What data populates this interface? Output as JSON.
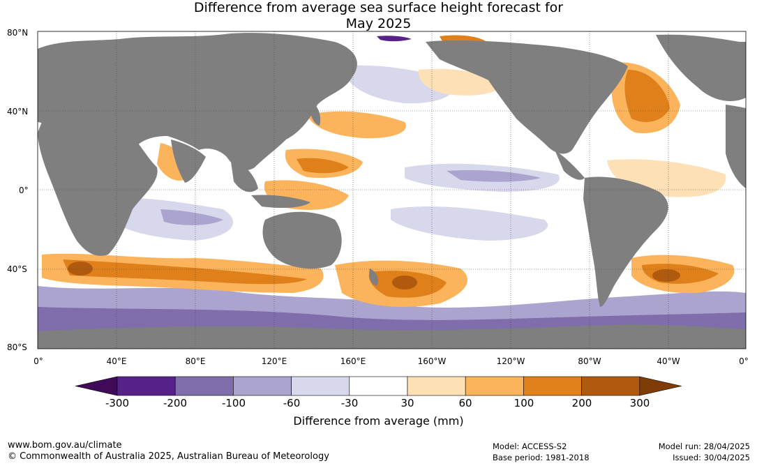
{
  "title_line1": "Difference from average sea surface height forecast for",
  "title_line2": "May 2025",
  "lat_labels": [
    "80°N",
    "40°N",
    "0°",
    "40°S",
    "80°S"
  ],
  "lon_labels": [
    "0°",
    "40°E",
    "80°E",
    "120°E",
    "160°E",
    "160°W",
    "120°W",
    "80°W",
    "40°W",
    "0°"
  ],
  "colorbar": {
    "title": "Difference from average (mm)",
    "ticks": [
      "-300",
      "-200",
      "-100",
      "-60",
      "-30",
      "30",
      "60",
      "100",
      "200",
      "300"
    ],
    "colors": [
      "#3f0a57",
      "#56228a",
      "#7f6eab",
      "#aba4cf",
      "#d8d8ec",
      "#ffffff",
      "#fde0b6",
      "#fbb35c",
      "#e0801a",
      "#b05a0f",
      "#7f3b08"
    ]
  },
  "colors": {
    "land": "#7f7f7f",
    "ocean": "#ffffff"
  },
  "footer": {
    "website": "www.bom.gov.au/climate",
    "copyright": "© Commonwealth of Australia 2025, Australian Bureau of Meteorology",
    "model": "Model: ACCESS-S2",
    "base_period": "Base period: 1981-2018",
    "model_run": "Model run: 28/04/2025",
    "issued": "Issued: 30/04/2025"
  }
}
